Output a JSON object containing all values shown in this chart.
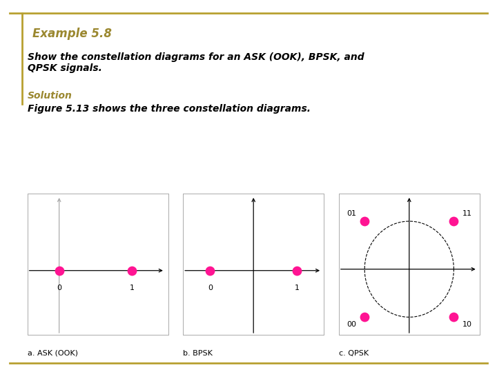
{
  "title": "Example 5.8",
  "title_color": "#9B8830",
  "subtitle": "Show the constellation diagrams for an ASK (OOK), BPSK, and\nQPSK signals.",
  "solution_label": "Solution",
  "solution_text": "Figure 5.13 shows the three constellation diagrams.",
  "bg_color": "#FFFFFF",
  "border_color": "#B8A030",
  "dot_color": "#FF1493",
  "dot_size": 80,
  "ask_points": [
    [
      0,
      0
    ],
    [
      0.8,
      0
    ]
  ],
  "ask_labels": [
    "0",
    "1"
  ],
  "bpsk_points": [
    [
      -0.8,
      0
    ],
    [
      0.8,
      0
    ]
  ],
  "bpsk_labels": [
    "0",
    "1"
  ],
  "qpsk_points": [
    [
      -0.707,
      0.707
    ],
    [
      0.707,
      0.707
    ],
    [
      -0.707,
      -0.707
    ],
    [
      0.707,
      -0.707
    ]
  ],
  "qpsk_labels": [
    "01",
    "11",
    "00",
    "10"
  ],
  "subplot_captions": [
    "a. ASK (OOK)",
    "b. BPSK",
    "c. QPSK"
  ],
  "font_size_title": 12,
  "font_size_body": 10,
  "font_size_solution": 10,
  "font_size_point_label": 8,
  "font_size_caption": 8
}
